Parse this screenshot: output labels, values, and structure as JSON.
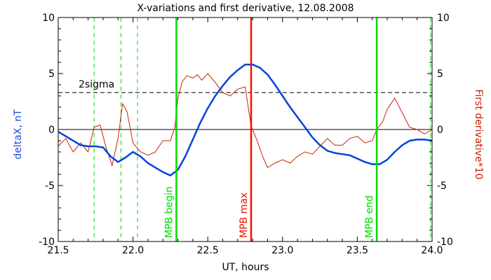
{
  "chart_data": {
    "type": "line",
    "title": "X-variations and first derivative, 12.08.2008",
    "xlabel": "UT, hours",
    "ylabel_left": "deltaX, nT",
    "ylabel_right": "First derivative*10",
    "xlim": [
      21.5,
      24.0
    ],
    "ylim": [
      -10,
      10
    ],
    "x_ticks": [
      "21.5",
      "22.0",
      "22.5",
      "23.0",
      "23.5",
      "24.0"
    ],
    "y_ticks_left": [
      "-10",
      "-5",
      "0",
      "5",
      "10"
    ],
    "y_ticks_right": [
      "-10",
      "-5",
      "0",
      "5",
      "10"
    ],
    "colors": {
      "deltaX": "#0044dd",
      "derivative": "#cc2200",
      "green": "#00dd00",
      "red_marker": "#ee1100",
      "axis": "#000000"
    },
    "series": [
      {
        "name": "deltaX, nT",
        "x": [
          21.5,
          21.55,
          21.6,
          21.65,
          21.7,
          21.75,
          21.8,
          21.85,
          21.9,
          21.95,
          22.0,
          22.05,
          22.1,
          22.15,
          22.2,
          22.25,
          22.3,
          22.35,
          22.4,
          22.45,
          22.5,
          22.55,
          22.6,
          22.65,
          22.7,
          22.75,
          22.8,
          22.85,
          22.9,
          22.95,
          23.0,
          23.05,
          23.1,
          23.15,
          23.2,
          23.25,
          23.3,
          23.35,
          23.4,
          23.45,
          23.5,
          23.55,
          23.6,
          23.65,
          23.7,
          23.75,
          23.8,
          23.85,
          23.9,
          23.95,
          24.0
        ],
        "values": [
          -0.2,
          -0.6,
          -1.0,
          -1.4,
          -1.5,
          -1.5,
          -1.6,
          -2.4,
          -2.9,
          -2.5,
          -2.0,
          -2.4,
          -3.0,
          -3.4,
          -3.8,
          -4.1,
          -3.6,
          -2.4,
          -0.9,
          0.6,
          1.9,
          3.0,
          3.9,
          4.7,
          5.3,
          5.8,
          5.8,
          5.5,
          4.9,
          4.0,
          3.0,
          2.0,
          1.1,
          0.2,
          -0.7,
          -1.4,
          -1.9,
          -2.1,
          -2.2,
          -2.3,
          -2.6,
          -2.9,
          -3.1,
          -3.1,
          -2.7,
          -2.0,
          -1.4,
          -1.0,
          -0.9,
          -0.9,
          -1.0
        ]
      },
      {
        "name": "First derivative*10",
        "x": [
          21.5,
          21.55,
          21.6,
          21.65,
          21.7,
          21.74,
          21.78,
          21.82,
          21.86,
          21.9,
          21.93,
          21.96,
          22.0,
          22.05,
          22.1,
          22.15,
          22.2,
          22.25,
          22.28,
          22.3,
          22.33,
          22.36,
          22.4,
          22.43,
          22.46,
          22.5,
          22.55,
          22.6,
          22.65,
          22.7,
          22.75,
          22.79,
          22.83,
          22.87,
          22.9,
          22.95,
          23.0,
          23.05,
          23.1,
          23.15,
          23.2,
          23.25,
          23.3,
          23.35,
          23.4,
          23.45,
          23.5,
          23.55,
          23.6,
          23.63,
          23.67,
          23.7,
          23.75,
          23.8,
          23.85,
          23.9,
          23.95,
          24.0
        ],
        "values": [
          -1.5,
          -0.8,
          -2.0,
          -1.2,
          -2.0,
          0.2,
          0.4,
          -1.6,
          -3.2,
          -0.8,
          2.3,
          1.6,
          -1.2,
          -2.0,
          -2.3,
          -2.0,
          -1.0,
          -1.0,
          0.2,
          2.8,
          4.3,
          4.8,
          4.6,
          4.9,
          4.4,
          5.0,
          4.2,
          3.3,
          3.0,
          3.6,
          3.8,
          0.3,
          -1.0,
          -2.5,
          -3.4,
          -3.0,
          -2.7,
          -3.0,
          -2.4,
          -2.0,
          -2.2,
          -1.5,
          -0.8,
          -1.4,
          -1.4,
          -0.8,
          -0.6,
          -1.2,
          -1.0,
          0.0,
          0.7,
          1.8,
          2.8,
          1.5,
          0.2,
          0.0,
          -0.4,
          0.0
        ]
      }
    ],
    "two_sigma": {
      "label": "2sigma",
      "value": 3.3
    },
    "zero_line": 0,
    "markers": [
      {
        "x": 22.29,
        "label": "MPB begin",
        "color": "#00dd00"
      },
      {
        "x": 22.79,
        "label": "MPB max",
        "color": "#ee1100"
      },
      {
        "x": 23.63,
        "label": "MPB end",
        "color": "#00dd00"
      }
    ],
    "dashed_markers": [
      21.74,
      21.92,
      22.03,
      23.99
    ]
  }
}
